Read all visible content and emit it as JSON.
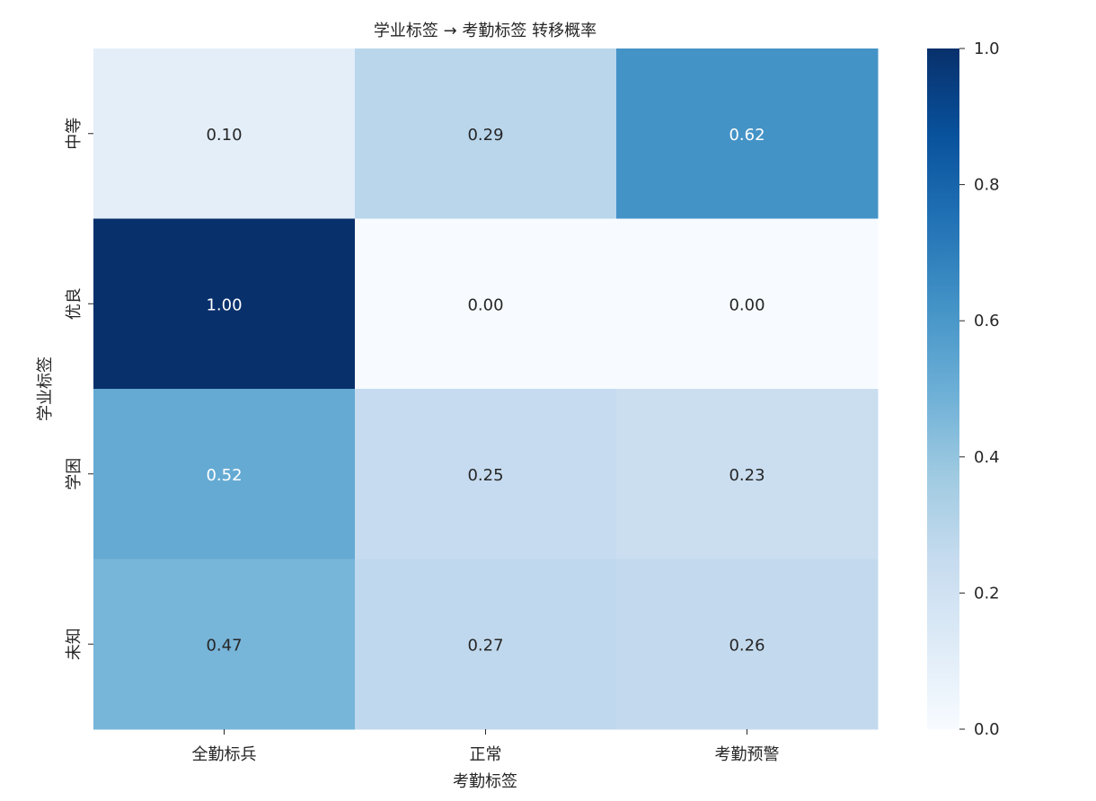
{
  "chart_data": {
    "type": "heatmap",
    "title": "学业标签 → 考勤标签 转移概率",
    "xlabel": "考勤标签",
    "ylabel": "学业标签",
    "x_categories": [
      "全勤标兵",
      "正常",
      "考勤预警"
    ],
    "y_categories": [
      "中等",
      "优良",
      "学困",
      "未知"
    ],
    "values": [
      [
        0.1,
        0.29,
        0.62
      ],
      [
        1.0,
        0.0,
        0.0
      ],
      [
        0.52,
        0.25,
        0.23
      ],
      [
        0.47,
        0.27,
        0.26
      ]
    ],
    "value_labels": [
      [
        "0.10",
        "0.29",
        "0.62"
      ],
      [
        "1.00",
        "0.00",
        "0.00"
      ],
      [
        "0.52",
        "0.25",
        "0.23"
      ],
      [
        "0.47",
        "0.27",
        "0.26"
      ]
    ],
    "colorbar": {
      "min": 0.0,
      "max": 1.0,
      "ticks": [
        0.0,
        0.2,
        0.4,
        0.6,
        0.8,
        1.0
      ],
      "tick_labels": [
        "0.0",
        "0.2",
        "0.4",
        "0.6",
        "0.8",
        "1.0"
      ]
    },
    "colormap": "Blues",
    "colormap_stops": [
      "#f7fbff",
      "#deebf7",
      "#c6dbef",
      "#9ecae1",
      "#6baed6",
      "#4292c6",
      "#2171b5",
      "#08519c",
      "#08306b"
    ],
    "grid": false
  }
}
